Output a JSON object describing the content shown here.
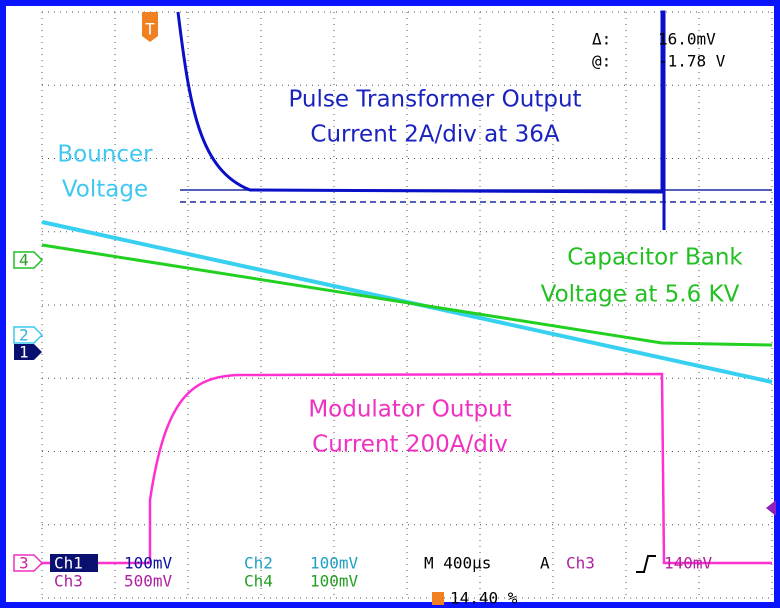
{
  "cursor_readout": {
    "delta_label": "Δ:",
    "delta_value": "16.0mV",
    "at_label": "@:",
    "at_value": "-1.78 V"
  },
  "annotations": {
    "pulse": [
      "Pulse Transformer Output",
      "Current 2A/div at 36A"
    ],
    "bouncer": [
      "Bouncer",
      "Voltage"
    ],
    "capacitor": [
      "Capacitor Bank",
      "Voltage at 5.6 KV"
    ],
    "modulator": [
      "Modulator Output",
      "Current 200A/div"
    ]
  },
  "markers": {
    "ch4": "4",
    "ch2": "2",
    "ch1": "1",
    "ch3": "3",
    "trigger": "T"
  },
  "status": {
    "row1": [
      "Ch1",
      "100mV",
      "Ch2",
      "100mV",
      "M 400µs",
      "A",
      "Ch3",
      "140mV"
    ],
    "row2": [
      "Ch3",
      "500mV",
      "Ch4",
      "100mV"
    ],
    "trigger_position": "14.40 %"
  }
}
